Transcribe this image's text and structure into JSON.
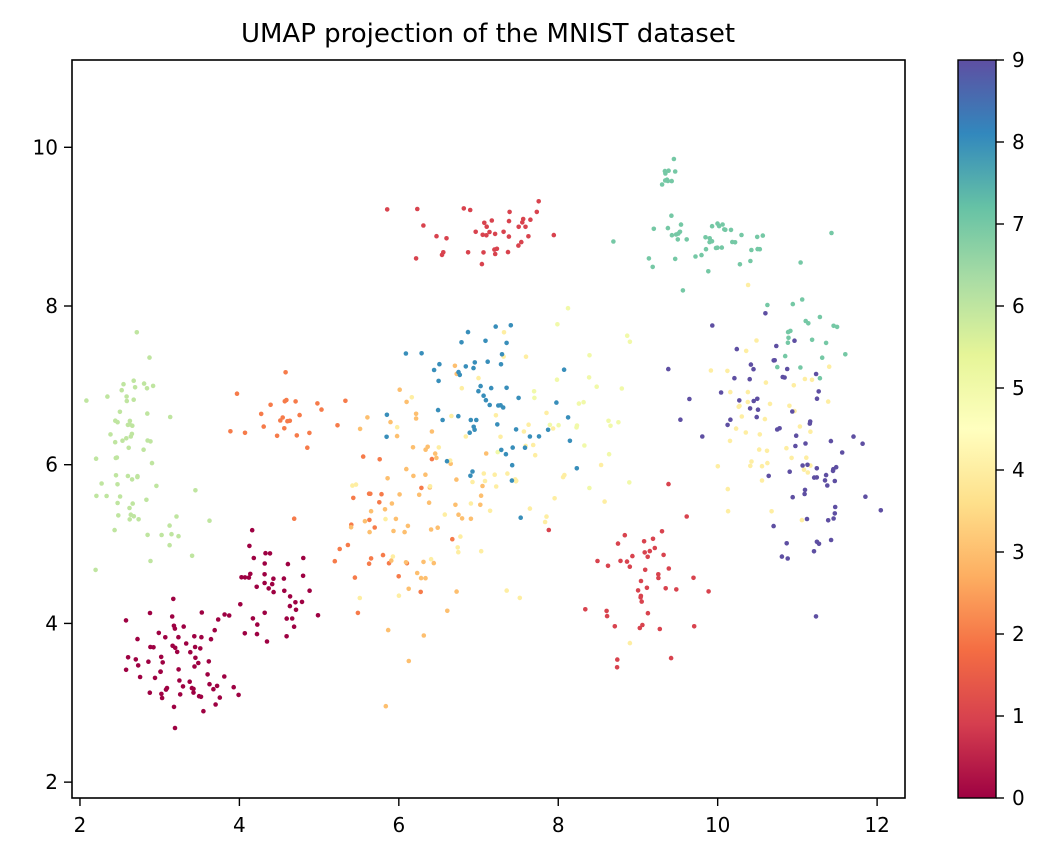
{
  "chart_data": {
    "type": "scatter",
    "title": "UMAP projection of the MNIST dataset",
    "xlabel": "",
    "ylabel": "",
    "xlim": [
      1.9,
      12.35
    ],
    "ylim": [
      1.8,
      11.1
    ],
    "xticks": [
      2,
      4,
      6,
      8,
      10,
      12
    ],
    "yticks": [
      2,
      4,
      6,
      8,
      10
    ],
    "grid": false,
    "colormap": "Spectral",
    "colorbar": {
      "range": [
        0,
        9
      ],
      "ticks": [
        0,
        1,
        2,
        3,
        4,
        5,
        6,
        7,
        8,
        9
      ],
      "colors": [
        "#9e0142",
        "#d53e4f",
        "#f46d43",
        "#fdae61",
        "#fee08b",
        "#ffffbf",
        "#e6f598",
        "#abdda4",
        "#66c2a5",
        "#3288bd",
        "#5e4fa2"
      ]
    },
    "clusters": [
      {
        "label": 0,
        "center": [
          3.3,
          3.6
        ],
        "spread": [
          0.35,
          0.35
        ],
        "count": 55
      },
      {
        "label": 0,
        "center": [
          4.35,
          4.3
        ],
        "spread": [
          0.3,
          0.35
        ],
        "count": 40
      },
      {
        "label": 0,
        "center": [
          3.6,
          3.15
        ],
        "spread": [
          0.3,
          0.06
        ],
        "count": 15
      },
      {
        "label": 1,
        "center": [
          7.0,
          8.95
        ],
        "spread": [
          0.5,
          0.25
        ],
        "count": 40
      },
      {
        "label": 1,
        "center": [
          9.1,
          4.6
        ],
        "spread": [
          0.35,
          0.5
        ],
        "count": 45
      },
      {
        "label": 2,
        "center": [
          4.6,
          6.6
        ],
        "spread": [
          0.35,
          0.25
        ],
        "count": 25
      },
      {
        "label": 2,
        "center": [
          5.7,
          5.2
        ],
        "spread": [
          0.35,
          0.5
        ],
        "count": 25
      },
      {
        "label": 3,
        "center": [
          6.3,
          5.5
        ],
        "spread": [
          0.45,
          0.75
        ],
        "count": 60
      },
      {
        "label": 4,
        "center": [
          7.1,
          5.8
        ],
        "spread": [
          0.8,
          0.8
        ],
        "count": 55
      },
      {
        "label": 4,
        "center": [
          10.6,
          6.3
        ],
        "spread": [
          0.5,
          0.6
        ],
        "count": 45
      },
      {
        "label": 5,
        "center": [
          8.3,
          6.7
        ],
        "spread": [
          0.4,
          0.6
        ],
        "count": 25
      },
      {
        "label": 6,
        "center": [
          2.65,
          6.2
        ],
        "spread": [
          0.2,
          0.6
        ],
        "count": 60
      },
      {
        "label": 6,
        "center": [
          3.3,
          5.2
        ],
        "spread": [
          0.25,
          0.2
        ],
        "count": 10
      },
      {
        "label": 7,
        "center": [
          9.85,
          8.8
        ],
        "spread": [
          0.5,
          0.15
        ],
        "count": 45
      },
      {
        "label": 7,
        "center": [
          11.1,
          7.65
        ],
        "spread": [
          0.3,
          0.25
        ],
        "count": 20
      },
      {
        "label": 7,
        "center": [
          9.35,
          9.65
        ],
        "spread": [
          0.05,
          0.1
        ],
        "count": 10
      },
      {
        "label": 8,
        "center": [
          7.1,
          6.6
        ],
        "spread": [
          0.6,
          0.7
        ],
        "count": 60
      },
      {
        "label": 9,
        "center": [
          11.3,
          5.8
        ],
        "spread": [
          0.35,
          0.6
        ],
        "count": 45
      },
      {
        "label": 9,
        "center": [
          10.4,
          7.1
        ],
        "spread": [
          0.35,
          0.45
        ],
        "count": 30
      }
    ]
  }
}
